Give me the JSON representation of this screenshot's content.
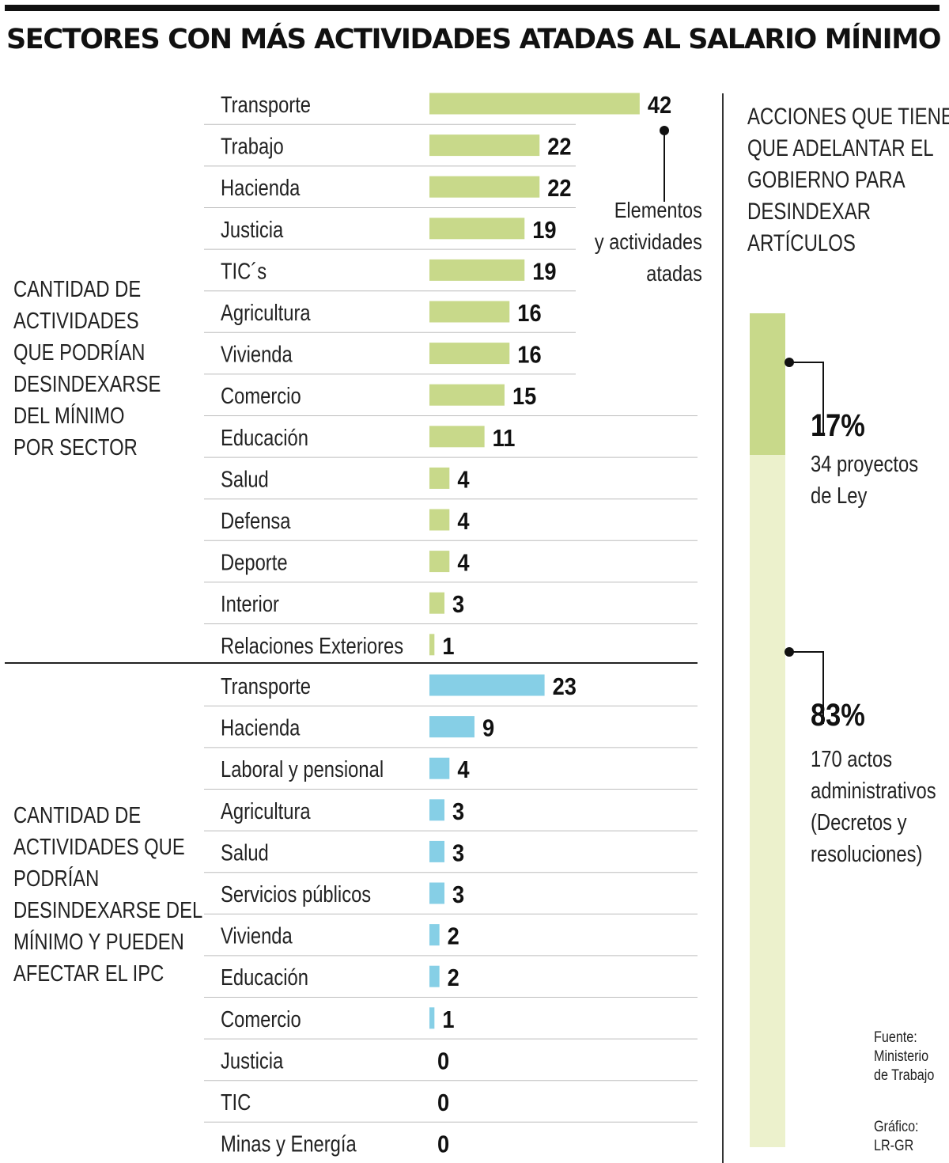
{
  "title": "SECTORES CON MÁS ACTIVIDADES ATADAS AL SALARIO MÍNIMO",
  "chart_data": [
    {
      "type": "bar",
      "orientation": "horizontal",
      "section_label_lines": [
        "CANTIDAD DE",
        "ACTIVIDADES",
        "QUE PODRÍAN",
        "DESINDEXARSE",
        "DEL MÍNIMO",
        "POR SECTOR"
      ],
      "annotation_lines": [
        "Elementos",
        "y actividades",
        "atadas"
      ],
      "color": "#c8d98a",
      "categories": [
        "Transporte",
        "Trabajo",
        "Hacienda",
        "Justicia",
        "TIC´s",
        "Agricultura",
        "Vivienda",
        "Comercio",
        "Educación",
        "Salud",
        "Defensa",
        "Deporte",
        "Interior",
        "Relaciones Exteriores"
      ],
      "values": [
        42,
        22,
        22,
        19,
        19,
        16,
        16,
        15,
        11,
        4,
        4,
        4,
        3,
        1
      ]
    },
    {
      "type": "bar",
      "orientation": "horizontal",
      "section_label_lines": [
        "CANTIDAD DE",
        "ACTIVIDADES QUE",
        "PODRÍAN",
        "DESINDEXARSE DEL",
        "MÍNIMO Y PUEDEN",
        "AFECTAR EL IPC"
      ],
      "color": "#86cfe6",
      "categories": [
        "Transporte",
        "Hacienda",
        "Laboral y pensional",
        "Agricultura",
        "Salud",
        "Servicios públicos",
        "Vivienda",
        "Educación",
        "Comercio",
        "Justicia",
        "TIC",
        "Minas y Energía"
      ],
      "values": [
        23,
        9,
        4,
        3,
        3,
        3,
        2,
        2,
        1,
        0,
        0,
        0
      ]
    },
    {
      "type": "stacked-bar",
      "title_lines": [
        "ACCIONES QUE TIENE",
        "QUE ADELANTAR EL",
        "GOBIERNO PARA",
        "DESINDEXAR",
        "ARTÍCULOS"
      ],
      "segments": [
        {
          "percent": 17,
          "label": "17%",
          "desc_lines": [
            "34 proyectos",
            "de Ley"
          ],
          "color": "#c8d98a"
        },
        {
          "percent": 83,
          "label": "83%",
          "desc_lines": [
            "170 actos",
            "administrativos",
            "(Decretos y",
            "resoluciones)"
          ],
          "color": "#ecf1cc"
        }
      ]
    }
  ],
  "source_lines": [
    "Fuente:",
    "Ministerio",
    "de Trabajo"
  ],
  "credit_lines": [
    "Gráfico:",
    "LR-GR"
  ]
}
